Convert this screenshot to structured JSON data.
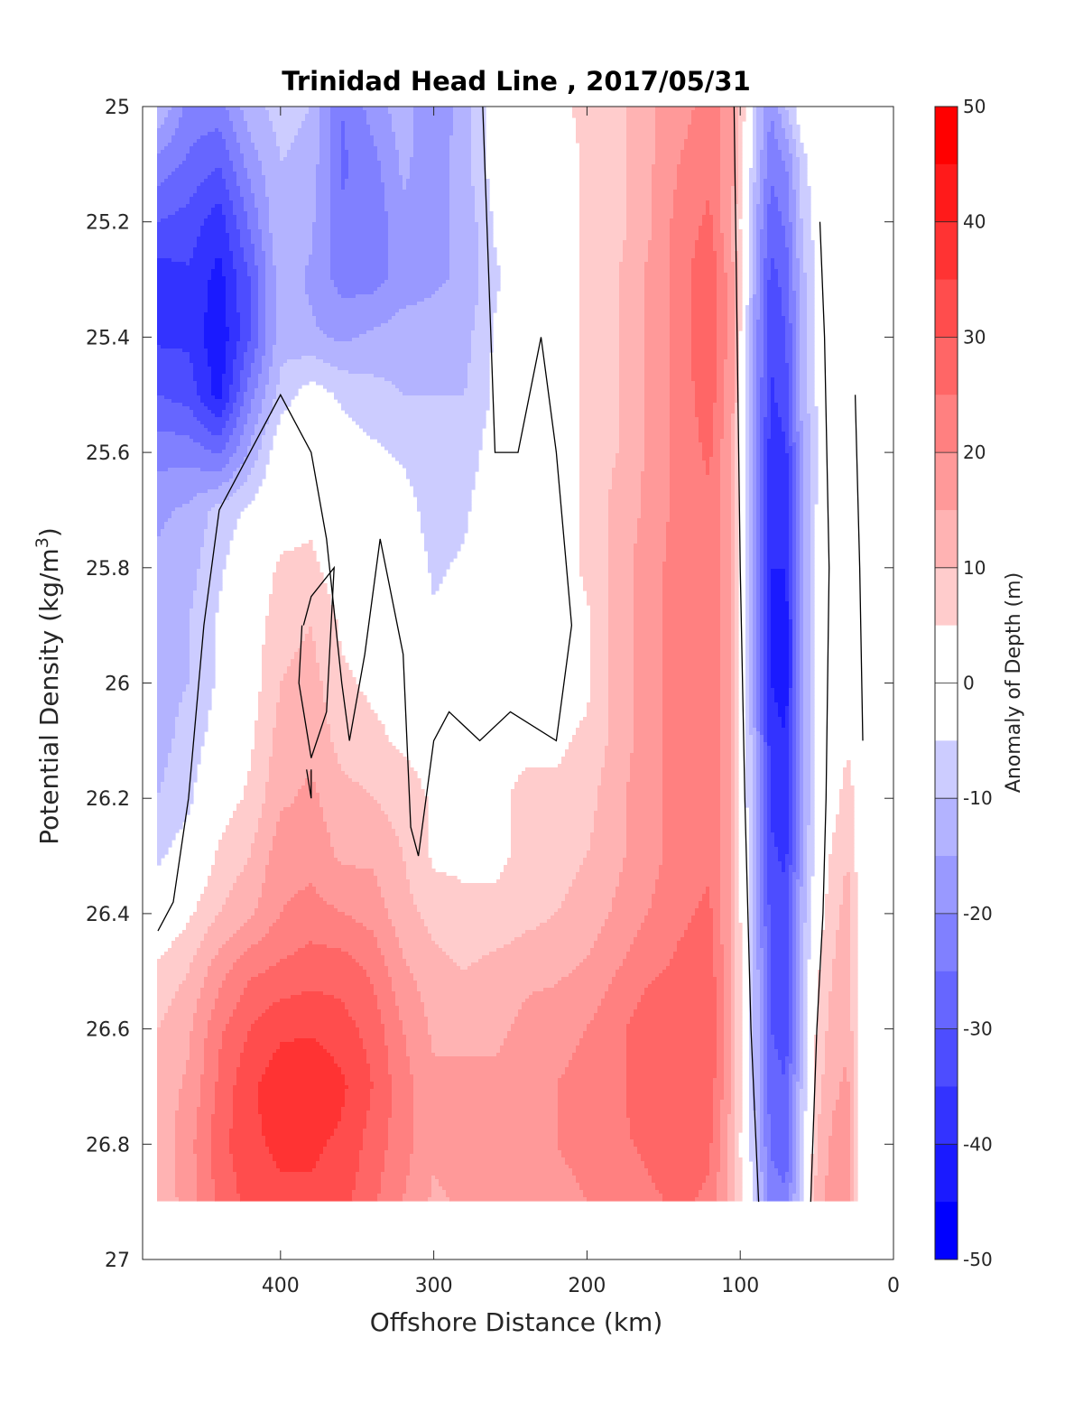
{
  "chart_data": {
    "type": "heatmap",
    "title": "Trinidad Head Line , 2017/05/31",
    "xlabel": "Offshore Distance (km)",
    "ylabel": "Potential Density (kg/m3)",
    "ylabel_parts": {
      "text": "Potential Density (kg/m",
      "sup": "3",
      "close": ")"
    },
    "colorbar_label": "Anomaly of Depth (m)",
    "xlim": [
      490,
      0
    ],
    "ylim": [
      25,
      27
    ],
    "y_reversed": true,
    "x_ticks": [
      400,
      300,
      200,
      100,
      0
    ],
    "x_tick_labels": [
      "400",
      "300",
      "200",
      "100",
      "0"
    ],
    "y_ticks": [
      25,
      25.2,
      25.4,
      25.6,
      25.8,
      26,
      26.2,
      26.4,
      26.6,
      26.8,
      27
    ],
    "y_tick_labels": [
      "25",
      "25.2",
      "25.4",
      "25.6",
      "25.8",
      "26",
      "26.2",
      "26.4",
      "26.6",
      "26.8",
      "27"
    ],
    "colorbar_ticks": [
      50,
      40,
      30,
      20,
      10,
      0,
      -10,
      -20,
      -30,
      -40,
      -50
    ],
    "colorbar_tick_labels": [
      "50",
      "40",
      "30",
      "20",
      "10",
      "0",
      "-10",
      "-20",
      "-30",
      "-40",
      "-50"
    ],
    "clim": [
      -50,
      50
    ],
    "contour_step": 5,
    "zero_contour_color": "#000000",
    "colormap": {
      "negative": "#0000ff",
      "zero": "#ffffff",
      "positive": "#ff0000"
    },
    "x": [
      480,
      460,
      440,
      420,
      400,
      380,
      360,
      340,
      320,
      300,
      280,
      260,
      240,
      220,
      200,
      180,
      160,
      140,
      120,
      105,
      90,
      80,
      70,
      60,
      50,
      40,
      30,
      20
    ],
    "y": [
      25.0,
      25.1,
      25.2,
      25.3,
      25.4,
      25.5,
      25.6,
      25.7,
      25.8,
      25.9,
      26.0,
      26.1,
      26.2,
      26.3,
      26.4,
      26.5,
      26.6,
      26.7,
      26.8,
      26.9
    ],
    "z": [
      [
        -10,
        -22,
        -22,
        -12,
        -8,
        -10,
        -25,
        -18,
        -12,
        -20,
        -12,
        -2,
        2,
        4,
        6,
        8,
        14,
        18,
        22,
        18,
        -8,
        -20,
        -10,
        0,
        0,
        0,
        0,
        0
      ],
      [
        -22,
        -26,
        -30,
        -18,
        -10,
        -12,
        -26,
        -22,
        -14,
        -18,
        -12,
        -2,
        4,
        2,
        6,
        8,
        14,
        20,
        24,
        16,
        -10,
        -24,
        -20,
        -8,
        0,
        0,
        0,
        0
      ],
      [
        -30,
        -32,
        -38,
        -24,
        -10,
        -14,
        -24,
        -24,
        -16,
        -16,
        -14,
        -4,
        0,
        2,
        6,
        8,
        14,
        22,
        26,
        14,
        -14,
        -28,
        -24,
        -10,
        -2,
        0,
        0,
        0
      ],
      [
        -38,
        -36,
        -42,
        -30,
        -12,
        -16,
        -22,
        -22,
        -18,
        -16,
        -14,
        -6,
        0,
        2,
        6,
        10,
        16,
        22,
        30,
        16,
        -16,
        -32,
        -28,
        -12,
        -4,
        0,
        0,
        0
      ],
      [
        -36,
        -36,
        -44,
        -30,
        -12,
        -14,
        -16,
        -14,
        -12,
        -12,
        -12,
        -4,
        0,
        2,
        6,
        10,
        16,
        22,
        30,
        16,
        -18,
        -34,
        -30,
        -14,
        -4,
        0,
        0,
        0
      ],
      [
        -30,
        -32,
        -42,
        -22,
        -8,
        -2,
        -6,
        -8,
        -10,
        -10,
        -10,
        -4,
        0,
        2,
        6,
        10,
        16,
        22,
        28,
        16,
        -18,
        -36,
        -32,
        -14,
        -4,
        0,
        0,
        0
      ],
      [
        -22,
        -22,
        -26,
        -14,
        0,
        2,
        -2,
        -4,
        -6,
        -10,
        -8,
        -2,
        2,
        2,
        6,
        10,
        16,
        22,
        26,
        14,
        -18,
        -38,
        -36,
        -16,
        -6,
        0,
        0,
        0
      ],
      [
        -16,
        -14,
        -8,
        -4,
        2,
        4,
        0,
        -2,
        -2,
        -8,
        -6,
        0,
        2,
        2,
        6,
        12,
        16,
        22,
        24,
        14,
        -18,
        -38,
        -38,
        -16,
        -4,
        0,
        2,
        0
      ],
      [
        -14,
        -12,
        -6,
        0,
        6,
        6,
        2,
        0,
        0,
        -6,
        -4,
        0,
        2,
        2,
        6,
        12,
        18,
        22,
        24,
        14,
        -18,
        -40,
        -40,
        -18,
        -4,
        0,
        2,
        0
      ],
      [
        -12,
        -10,
        -4,
        2,
        8,
        10,
        4,
        2,
        2,
        -4,
        -2,
        0,
        2,
        2,
        4,
        12,
        18,
        22,
        24,
        14,
        -18,
        -40,
        -42,
        -18,
        -4,
        0,
        4,
        0
      ],
      [
        -12,
        -10,
        -4,
        2,
        10,
        12,
        6,
        4,
        4,
        -2,
        0,
        2,
        2,
        2,
        4,
        12,
        18,
        22,
        24,
        14,
        -18,
        -40,
        -42,
        -18,
        -4,
        0,
        4,
        0
      ],
      [
        -12,
        -8,
        -2,
        4,
        12,
        14,
        8,
        6,
        4,
        2,
        2,
        4,
        4,
        4,
        6,
        12,
        18,
        22,
        24,
        14,
        -16,
        -38,
        -40,
        -18,
        -4,
        0,
        4,
        0
      ],
      [
        -10,
        -6,
        2,
        6,
        14,
        16,
        12,
        10,
        8,
        4,
        4,
        4,
        6,
        6,
        8,
        14,
        18,
        22,
        24,
        14,
        -16,
        -36,
        -38,
        -16,
        -4,
        2,
        8,
        0
      ],
      [
        -6,
        -2,
        6,
        10,
        18,
        18,
        14,
        14,
        10,
        4,
        4,
        4,
        6,
        8,
        10,
        14,
        18,
        22,
        24,
        14,
        -14,
        -34,
        -36,
        -16,
        -2,
        6,
        10,
        0
      ],
      [
        0,
        4,
        10,
        14,
        20,
        22,
        20,
        18,
        12,
        8,
        6,
        6,
        8,
        10,
        12,
        16,
        20,
        24,
        26,
        14,
        -14,
        -32,
        -34,
        -14,
        2,
        8,
        12,
        0
      ],
      [
        6,
        10,
        18,
        24,
        26,
        28,
        28,
        24,
        16,
        12,
        10,
        12,
        14,
        14,
        16,
        20,
        24,
        26,
        28,
        14,
        -12,
        -30,
        -32,
        -12,
        4,
        10,
        14,
        0
      ],
      [
        10,
        14,
        24,
        30,
        34,
        34,
        32,
        28,
        20,
        14,
        14,
        14,
        16,
        18,
        20,
        24,
        28,
        30,
        30,
        14,
        -12,
        -30,
        -32,
        -12,
        6,
        12,
        14,
        0
      ],
      [
        12,
        16,
        26,
        34,
        38,
        40,
        36,
        30,
        22,
        16,
        16,
        16,
        18,
        20,
        22,
        24,
        28,
        30,
        28,
        14,
        -12,
        -28,
        -30,
        -10,
        8,
        14,
        16,
        0
      ],
      [
        12,
        18,
        28,
        34,
        36,
        36,
        34,
        28,
        22,
        16,
        18,
        18,
        20,
        20,
        22,
        24,
        26,
        28,
        26,
        12,
        -10,
        -26,
        -28,
        -8,
        10,
        16,
        16,
        0
      ],
      [
        10,
        18,
        26,
        32,
        34,
        34,
        32,
        26,
        20,
        14,
        16,
        18,
        18,
        18,
        20,
        22,
        24,
        26,
        24,
        12,
        -8,
        -22,
        -24,
        -6,
        12,
        18,
        16,
        0
      ]
    ],
    "zero_contours": [
      [
        [
          480,
          26.43
        ],
        [
          470,
          26.38
        ],
        [
          460,
          26.2
        ],
        [
          450,
          25.9
        ],
        [
          440,
          25.7
        ],
        [
          420,
          25.6
        ],
        [
          400,
          25.5
        ],
        [
          390,
          25.55
        ],
        [
          380,
          25.6
        ],
        [
          370,
          25.75
        ],
        [
          360,
          26.0
        ],
        [
          355,
          26.1
        ],
        [
          345,
          25.95
        ],
        [
          335,
          25.75
        ],
        [
          320,
          25.95
        ],
        [
          315,
          26.25
        ],
        [
          310,
          26.3
        ],
        [
          300,
          26.1
        ],
        [
          290,
          26.05
        ],
        [
          270,
          26.1
        ],
        [
          250,
          26.05
        ],
        [
          220,
          26.1
        ],
        [
          210,
          25.9
        ],
        [
          220,
          25.6
        ],
        [
          230,
          25.4
        ],
        [
          245,
          25.6
        ],
        [
          260,
          25.6
        ],
        [
          268,
          25.0
        ]
      ],
      [
        [
          383,
          26.15
        ],
        [
          380,
          26.2
        ],
        [
          380,
          26.15
        ]
      ],
      [
        [
          385,
          25.9
        ],
        [
          380,
          25.85
        ],
        [
          365,
          25.8
        ],
        [
          370,
          26.05
        ],
        [
          380,
          26.13
        ],
        [
          388,
          26.0
        ],
        [
          386,
          25.9
        ]
      ],
      [
        [
          104,
          25.0
        ],
        [
          102,
          25.4
        ],
        [
          100,
          25.8
        ],
        [
          97,
          26.2
        ],
        [
          93,
          26.6
        ],
        [
          88,
          26.9
        ]
      ],
      [
        [
          48,
          25.2
        ],
        [
          45,
          25.4
        ],
        [
          42,
          25.8
        ],
        [
          44,
          26.2
        ],
        [
          46,
          26.4
        ],
        [
          50,
          26.6
        ],
        [
          54,
          26.9
        ]
      ],
      [
        [
          25,
          25.5
        ],
        [
          22,
          25.8
        ],
        [
          20,
          26.1
        ]
      ]
    ]
  }
}
